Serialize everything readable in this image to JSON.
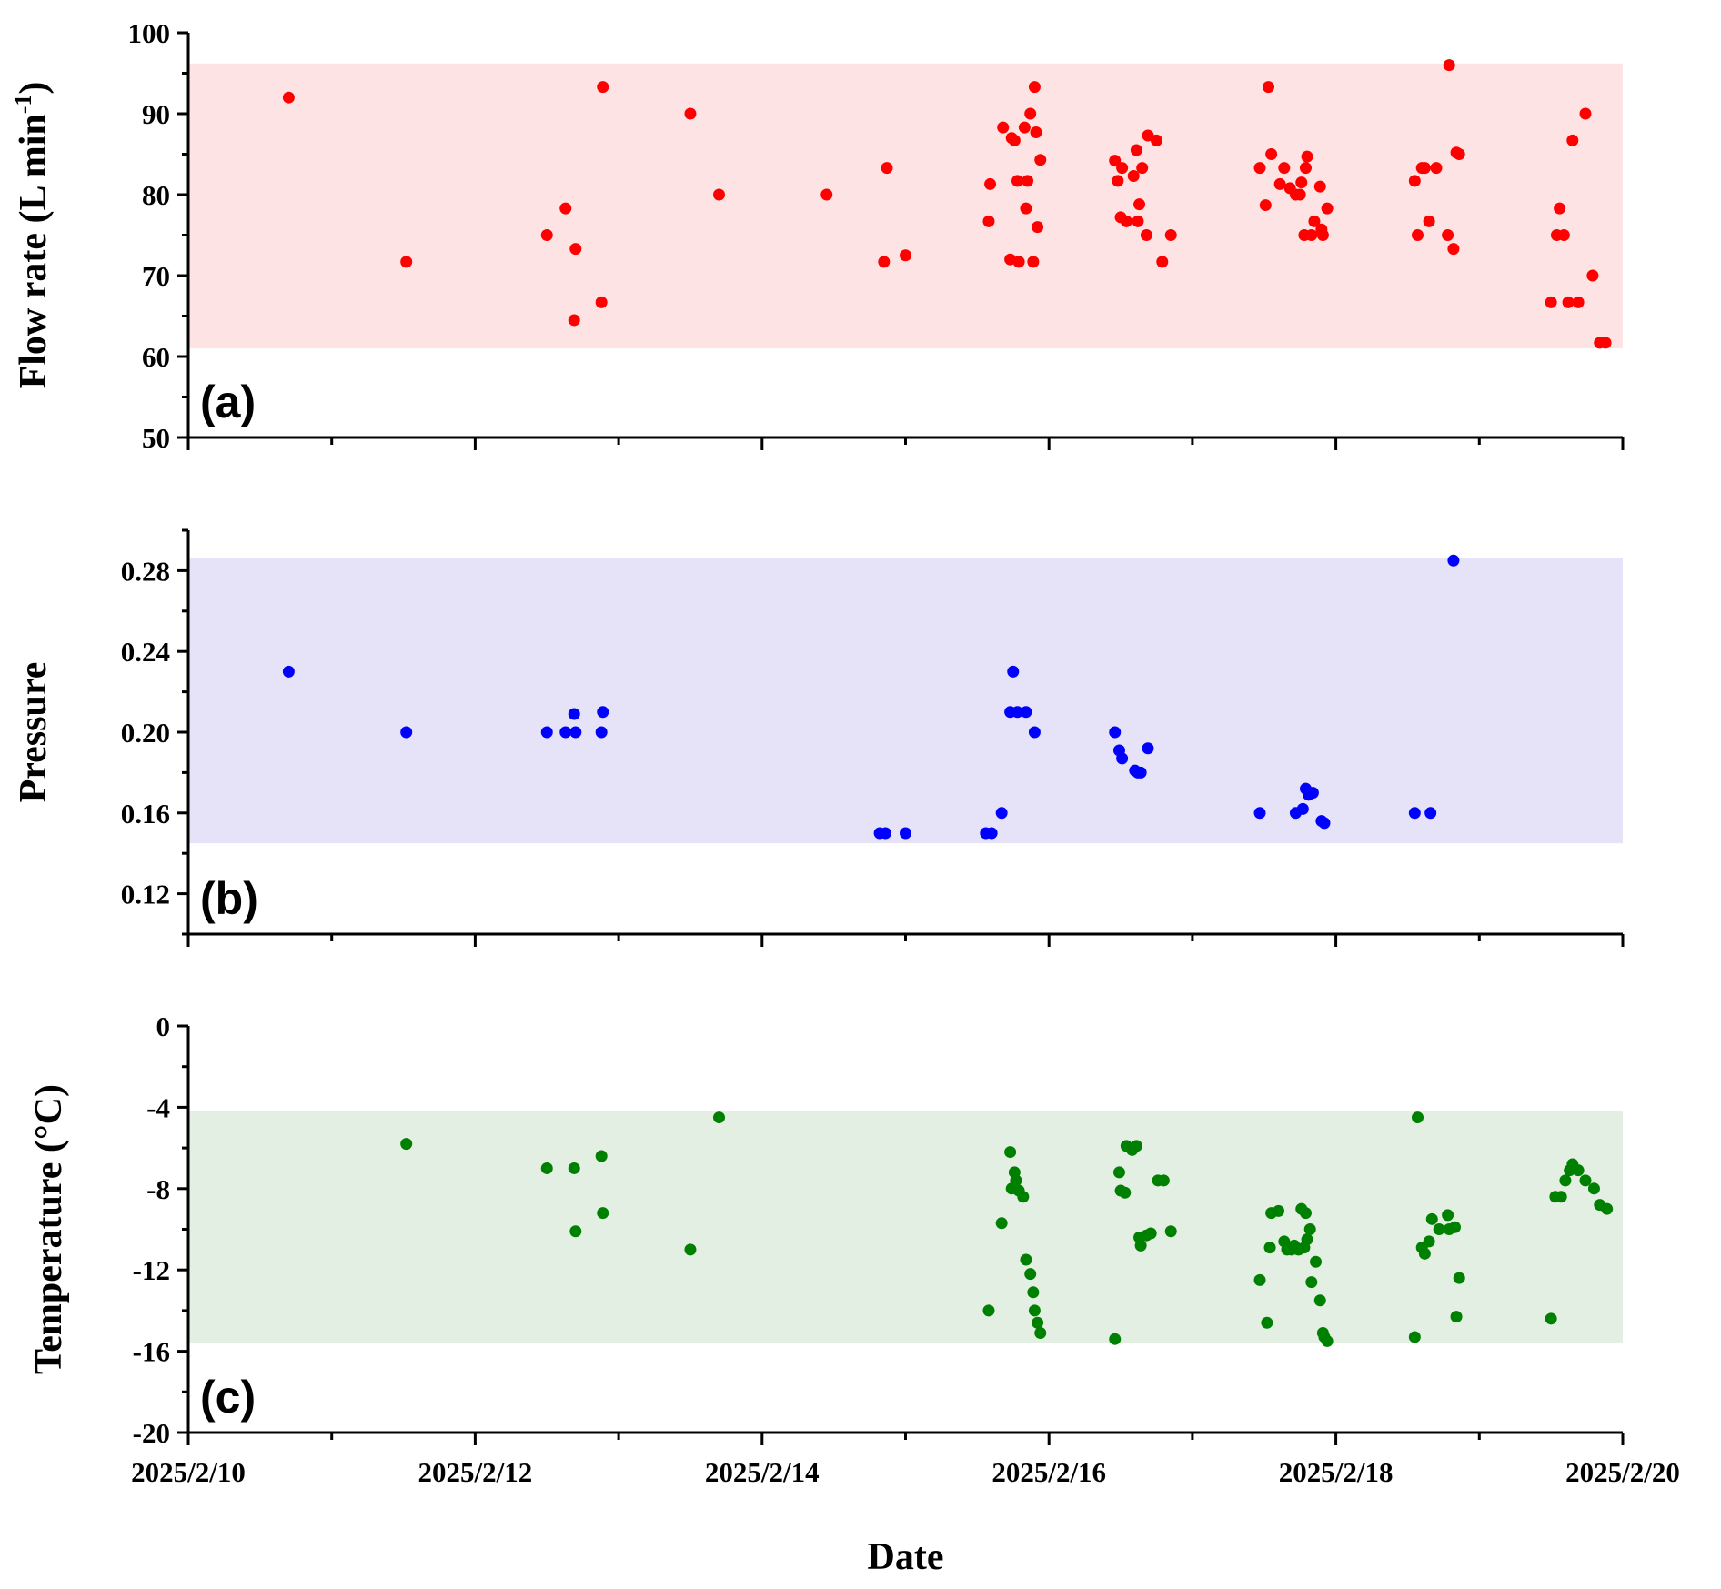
{
  "chart_data": [
    {
      "type": "scatter",
      "panel_label": "(a)",
      "ylabel": "Flow rate (L min",
      "ylabel_sup": "-1",
      "ylabel_close": ")",
      "ylim": [
        50,
        100
      ],
      "yticks": [
        "100",
        "90",
        "80",
        "70",
        "60",
        "50"
      ],
      "band": [
        61,
        96.2
      ],
      "band_color": "#fde3e3",
      "point_color": "#ff0000",
      "points": [
        [
          0.7,
          92
        ],
        [
          1.52,
          71.7
        ],
        [
          2.5,
          75
        ],
        [
          2.63,
          78.3
        ],
        [
          2.69,
          64.5
        ],
        [
          2.7,
          73.3
        ],
        [
          2.88,
          66.7
        ],
        [
          2.89,
          93.3
        ],
        [
          3.5,
          90
        ],
        [
          3.7,
          80
        ],
        [
          4.45,
          80
        ],
        [
          4.85,
          71.7
        ],
        [
          4.87,
          83.3
        ],
        [
          5.0,
          72.5
        ],
        [
          5.58,
          76.7
        ],
        [
          5.59,
          81.3
        ],
        [
          5.68,
          88.3
        ],
        [
          5.73,
          72
        ],
        [
          5.74,
          87
        ],
        [
          5.76,
          86.7
        ],
        [
          5.78,
          81.7
        ],
        [
          5.79,
          71.7
        ],
        [
          5.83,
          88.3
        ],
        [
          5.84,
          78.3
        ],
        [
          5.85,
          81.7
        ],
        [
          5.87,
          90
        ],
        [
          5.89,
          71.7
        ],
        [
          5.9,
          93.3
        ],
        [
          5.91,
          87.7
        ],
        [
          5.92,
          76
        ],
        [
          5.94,
          84.3
        ],
        [
          6.46,
          84.2
        ],
        [
          6.48,
          81.7
        ],
        [
          6.5,
          77.2
        ],
        [
          6.51,
          83.3
        ],
        [
          6.54,
          76.7
        ],
        [
          6.59,
          82.3
        ],
        [
          6.61,
          85.5
        ],
        [
          6.62,
          76.7
        ],
        [
          6.63,
          78.8
        ],
        [
          6.65,
          83.3
        ],
        [
          6.68,
          75
        ],
        [
          6.69,
          87.3
        ],
        [
          6.75,
          86.7
        ],
        [
          6.79,
          71.7
        ],
        [
          6.85,
          75
        ],
        [
          7.47,
          83.3
        ],
        [
          7.51,
          78.7
        ],
        [
          7.53,
          93.3
        ],
        [
          7.55,
          85
        ],
        [
          7.61,
          81.3
        ],
        [
          7.64,
          83.3
        ],
        [
          7.68,
          80.8
        ],
        [
          7.72,
          80
        ],
        [
          7.75,
          80
        ],
        [
          7.76,
          81.5
        ],
        [
          7.78,
          75
        ],
        [
          7.79,
          83.3
        ],
        [
          7.8,
          84.7
        ],
        [
          7.83,
          75
        ],
        [
          7.85,
          76.7
        ],
        [
          7.89,
          81
        ],
        [
          7.9,
          75.7
        ],
        [
          7.91,
          75
        ],
        [
          7.94,
          78.3
        ],
        [
          8.55,
          81.7
        ],
        [
          8.57,
          75
        ],
        [
          8.6,
          83.3
        ],
        [
          8.62,
          83.3
        ],
        [
          8.65,
          76.7
        ],
        [
          8.7,
          83.3
        ],
        [
          8.78,
          75
        ],
        [
          8.79,
          96
        ],
        [
          8.82,
          73.3
        ],
        [
          8.84,
          85.2
        ],
        [
          8.86,
          85
        ],
        [
          9.5,
          66.7
        ],
        [
          9.54,
          75
        ],
        [
          9.56,
          78.3
        ],
        [
          9.59,
          75
        ],
        [
          9.62,
          66.7
        ],
        [
          9.65,
          86.7
        ],
        [
          9.69,
          66.7
        ],
        [
          9.74,
          90
        ],
        [
          9.79,
          70
        ],
        [
          9.84,
          61.7
        ],
        [
          9.88,
          61.7
        ]
      ]
    },
    {
      "type": "scatter",
      "panel_label": "(b)",
      "ylabel": "Pressure",
      "ylim": [
        0.1,
        0.3
      ],
      "yticks": [
        "0.28",
        "0.24",
        "0.20",
        "0.16",
        "0.12"
      ],
      "band": [
        0.145,
        0.286
      ],
      "band_color": "#e6e3f9",
      "point_color": "#0000ff",
      "points": [
        [
          0.7,
          0.23
        ],
        [
          1.52,
          0.2
        ],
        [
          2.5,
          0.2
        ],
        [
          2.63,
          0.2
        ],
        [
          2.69,
          0.209
        ],
        [
          2.7,
          0.2
        ],
        [
          2.88,
          0.2
        ],
        [
          2.89,
          0.21
        ],
        [
          4.82,
          0.15
        ],
        [
          4.86,
          0.15
        ],
        [
          5.0,
          0.15
        ],
        [
          5.56,
          0.15
        ],
        [
          5.6,
          0.15
        ],
        [
          5.67,
          0.16
        ],
        [
          5.73,
          0.21
        ],
        [
          5.75,
          0.23
        ],
        [
          5.78,
          0.21
        ],
        [
          5.84,
          0.21
        ],
        [
          5.9,
          0.2
        ],
        [
          6.46,
          0.2
        ],
        [
          6.49,
          0.191
        ],
        [
          6.51,
          0.187
        ],
        [
          6.6,
          0.181
        ],
        [
          6.62,
          0.18
        ],
        [
          6.64,
          0.18
        ],
        [
          6.69,
          0.192
        ],
        [
          7.47,
          0.16
        ],
        [
          7.72,
          0.16
        ],
        [
          7.77,
          0.162
        ],
        [
          7.79,
          0.172
        ],
        [
          7.81,
          0.169
        ],
        [
          7.84,
          0.17
        ],
        [
          7.9,
          0.156
        ],
        [
          7.92,
          0.155
        ],
        [
          8.55,
          0.16
        ],
        [
          8.66,
          0.16
        ],
        [
          8.82,
          0.285
        ]
      ]
    },
    {
      "type": "scatter",
      "panel_label": "(c)",
      "ylabel": "Temperature (°C)",
      "ylim": [
        -20,
        0
      ],
      "yticks": [
        "0",
        "-4",
        "-8",
        "-12",
        "-16",
        "-20"
      ],
      "band": [
        -15.6,
        -4.2
      ],
      "band_color": "#e3efe3",
      "point_color": "#008000",
      "points": [
        [
          1.52,
          -5.8
        ],
        [
          2.5,
          -7
        ],
        [
          2.69,
          -7
        ],
        [
          2.7,
          -10.1
        ],
        [
          2.88,
          -6.4
        ],
        [
          2.89,
          -9.2
        ],
        [
          3.5,
          -11
        ],
        [
          3.7,
          -4.5
        ],
        [
          5.58,
          -14
        ],
        [
          5.67,
          -9.7
        ],
        [
          5.73,
          -6.2
        ],
        [
          5.74,
          -8
        ],
        [
          5.76,
          -7.2
        ],
        [
          5.77,
          -7.6
        ],
        [
          5.79,
          -8.1
        ],
        [
          5.82,
          -8.4
        ],
        [
          5.84,
          -11.5
        ],
        [
          5.87,
          -12.2
        ],
        [
          5.89,
          -13.1
        ],
        [
          5.9,
          -14
        ],
        [
          5.92,
          -14.6
        ],
        [
          5.94,
          -15.1
        ],
        [
          6.46,
          -15.4
        ],
        [
          6.49,
          -7.2
        ],
        [
          6.5,
          -8.1
        ],
        [
          6.53,
          -8.2
        ],
        [
          6.54,
          -5.9
        ],
        [
          6.58,
          -6.1
        ],
        [
          6.61,
          -5.9
        ],
        [
          6.63,
          -10.4
        ],
        [
          6.64,
          -10.8
        ],
        [
          6.68,
          -10.3
        ],
        [
          6.71,
          -10.2
        ],
        [
          6.76,
          -7.6
        ],
        [
          6.8,
          -7.6
        ],
        [
          6.85,
          -10.1
        ],
        [
          7.47,
          -12.5
        ],
        [
          7.52,
          -14.6
        ],
        [
          7.54,
          -10.9
        ],
        [
          7.55,
          -9.2
        ],
        [
          7.6,
          -9.1
        ],
        [
          7.64,
          -10.6
        ],
        [
          7.66,
          -11
        ],
        [
          7.69,
          -11
        ],
        [
          7.71,
          -10.8
        ],
        [
          7.74,
          -11
        ],
        [
          7.76,
          -9
        ],
        [
          7.78,
          -10.9
        ],
        [
          7.79,
          -9.2
        ],
        [
          7.8,
          -10.5
        ],
        [
          7.82,
          -10
        ],
        [
          7.83,
          -12.6
        ],
        [
          7.86,
          -11.6
        ],
        [
          7.89,
          -13.5
        ],
        [
          7.91,
          -15.1
        ],
        [
          7.92,
          -15.3
        ],
        [
          7.94,
          -15.5
        ],
        [
          8.55,
          -15.3
        ],
        [
          8.57,
          -4.5
        ],
        [
          8.6,
          -10.9
        ],
        [
          8.62,
          -11.2
        ],
        [
          8.65,
          -10.6
        ],
        [
          8.67,
          -9.5
        ],
        [
          8.72,
          -10
        ],
        [
          8.78,
          -9.3
        ],
        [
          8.79,
          -10
        ],
        [
          8.83,
          -9.9
        ],
        [
          8.84,
          -14.3
        ],
        [
          8.86,
          -12.4
        ],
        [
          9.5,
          -14.4
        ],
        [
          9.53,
          -8.4
        ],
        [
          9.57,
          -8.4
        ],
        [
          9.6,
          -7.6
        ],
        [
          9.63,
          -7.1
        ],
        [
          9.65,
          -6.8
        ],
        [
          9.69,
          -7.1
        ],
        [
          9.74,
          -7.6
        ],
        [
          9.8,
          -8
        ],
        [
          9.84,
          -8.8
        ],
        [
          9.89,
          -9
        ]
      ]
    }
  ],
  "x_axis": {
    "label": "Date",
    "range": [
      0,
      10
    ],
    "ticks": [
      {
        "value": 0,
        "label": "2025/2/10"
      },
      {
        "value": 2,
        "label": "2025/2/12"
      },
      {
        "value": 4,
        "label": "2025/2/14"
      },
      {
        "value": 6,
        "label": "2025/2/16"
      },
      {
        "value": 8,
        "label": "2025/2/18"
      },
      {
        "value": 10,
        "label": "2025/2/20"
      }
    ]
  }
}
